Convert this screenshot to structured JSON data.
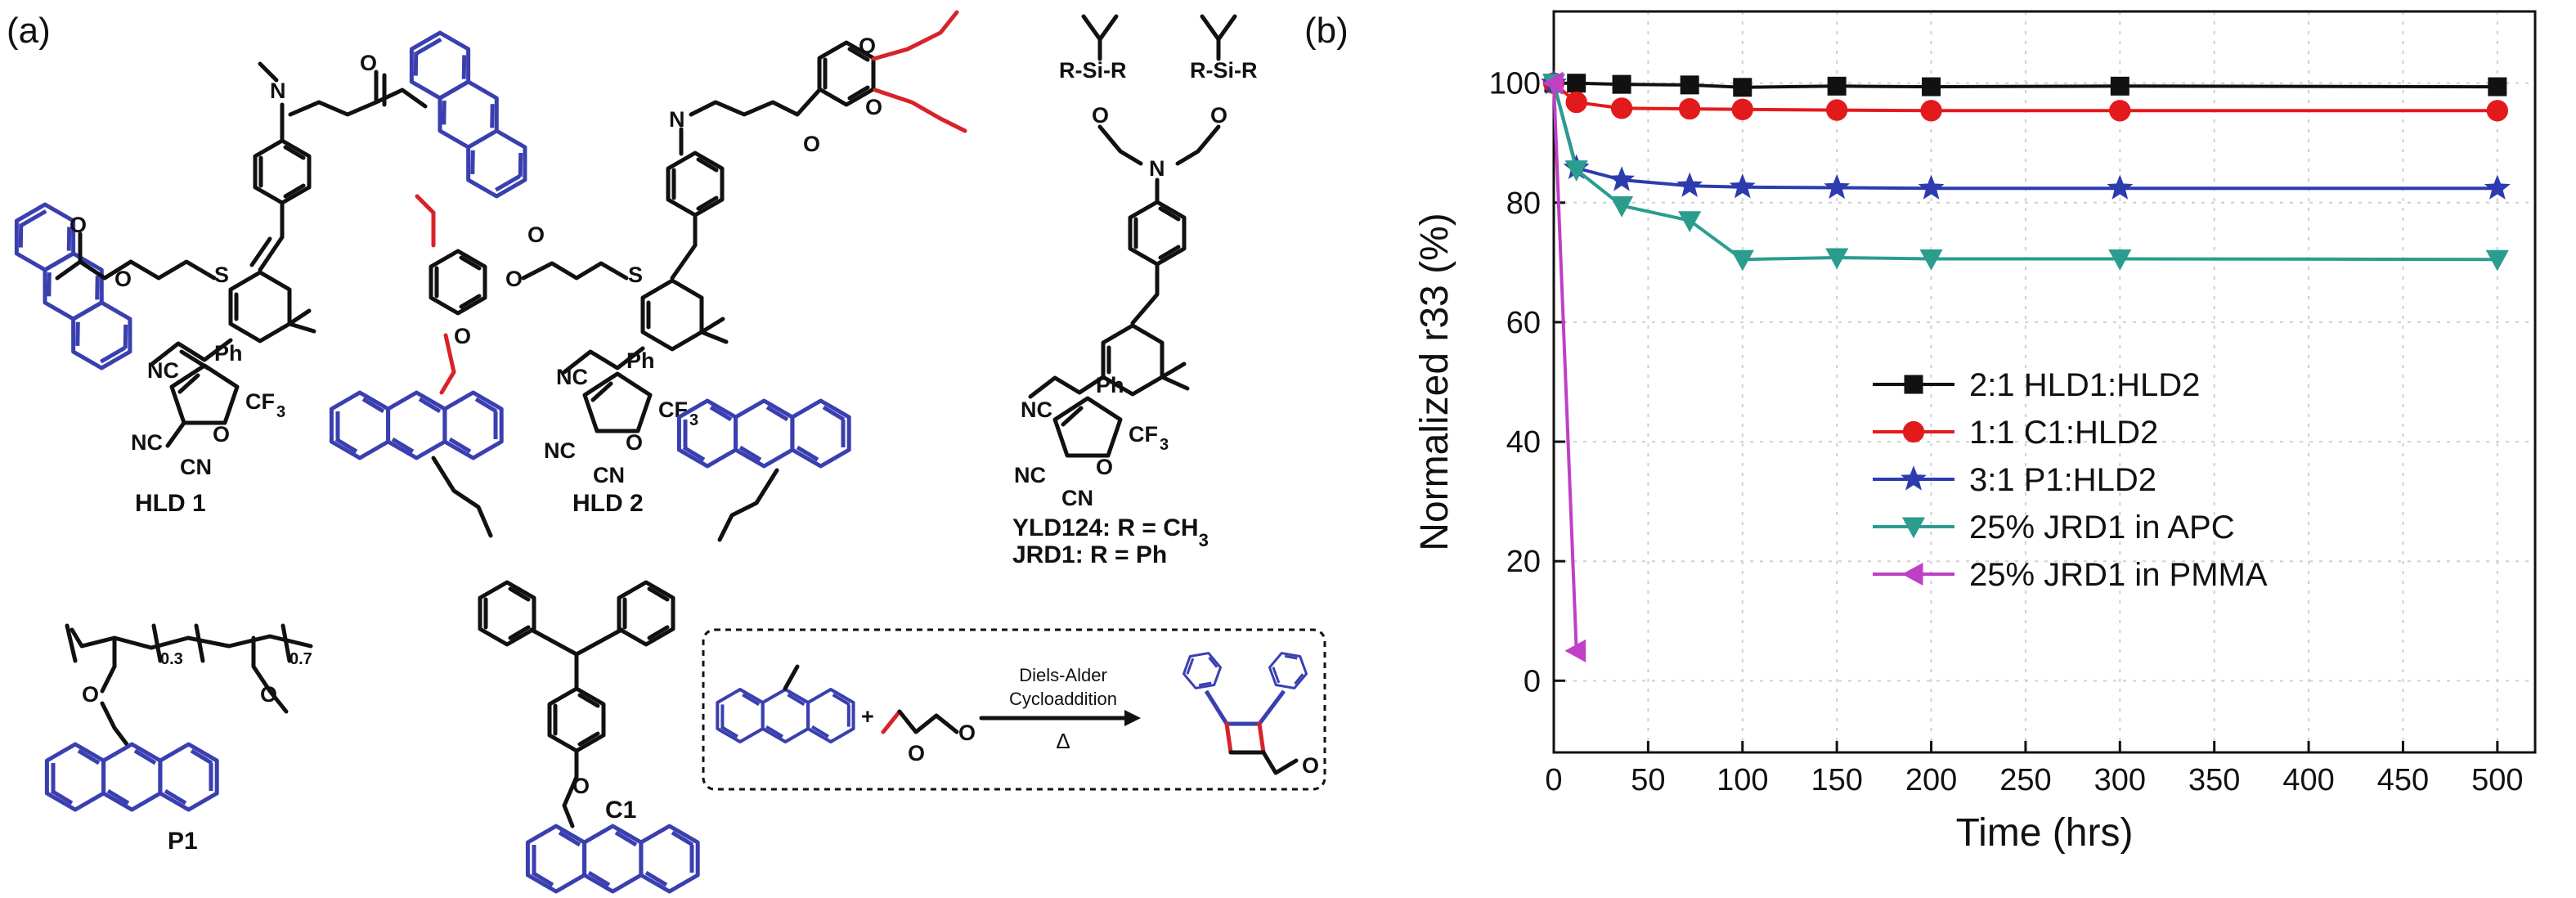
{
  "panels": {
    "a": "(a)",
    "b": "(b)"
  },
  "structures": {
    "hld1": "HLD 1",
    "hld2": "HLD 2",
    "p1": "P1",
    "c1": "C1",
    "yld124": "YLD124: R = CH",
    "yld124_sub": "3",
    "jrd1": "JRD1: R = Ph",
    "subscript_03": "0.3",
    "subscript_07": "0.7",
    "reaction_line1": "Diels-Alder",
    "reaction_line2": "Cycloaddition",
    "reaction_heat": "Δ",
    "reaction_plus": "+",
    "silyl_text": "R-Si-R"
  },
  "colors": {
    "black": "#111111",
    "red": "#e31a1c",
    "blue": "#2c3cae",
    "teal": "#2a9d8f",
    "magenta": "#c03fc7",
    "anthracene_blue": "#3a3fb0",
    "acrylate_red": "#d8222a"
  },
  "chart_data": {
    "type": "line",
    "title": "",
    "xlabel": "Time (hrs)",
    "ylabel": "Normalized r33 (%)",
    "xlim": [
      0,
      520
    ],
    "ylim": [
      -12,
      112
    ],
    "xticks": [
      0,
      50,
      100,
      150,
      200,
      250,
      300,
      350,
      400,
      450,
      500
    ],
    "yticks": [
      0,
      20,
      40,
      60,
      80,
      100
    ],
    "grid": true,
    "legend_position": "center-right",
    "series": [
      {
        "name": "2:1 HLD1:HLD2",
        "color": "#111111",
        "marker": "square",
        "x": [
          0,
          12,
          36,
          72,
          100,
          150,
          200,
          300,
          500
        ],
        "y": [
          100,
          100,
          99.8,
          99.7,
          99.3,
          99.5,
          99.4,
          99.5,
          99.4
        ]
      },
      {
        "name": "1:1 C1:HLD2",
        "color": "#e31a1c",
        "marker": "circle",
        "x": [
          0,
          12,
          36,
          72,
          100,
          150,
          200,
          300,
          500
        ],
        "y": [
          100,
          96.8,
          95.8,
          95.7,
          95.6,
          95.5,
          95.4,
          95.4,
          95.4
        ]
      },
      {
        "name": "3:1 P1:HLD2",
        "color": "#2c3cae",
        "marker": "star",
        "x": [
          0,
          12,
          36,
          72,
          100,
          150,
          200,
          300,
          500
        ],
        "y": [
          100,
          85.8,
          83.8,
          82.8,
          82.6,
          82.5,
          82.4,
          82.4,
          82.4
        ]
      },
      {
        "name": "25% JRD1 in APC",
        "color": "#2a9d8f",
        "marker": "triangle-down",
        "x": [
          0,
          12,
          36,
          72,
          100,
          150,
          200,
          300,
          500
        ],
        "y": [
          100,
          85.5,
          79.5,
          77,
          70.5,
          70.8,
          70.6,
          70.6,
          70.5
        ]
      },
      {
        "name": "25% JRD1 in PMMA",
        "color": "#c03fc7",
        "marker": "triangle-left",
        "x": [
          0,
          12
        ],
        "y": [
          100,
          5
        ]
      }
    ]
  }
}
